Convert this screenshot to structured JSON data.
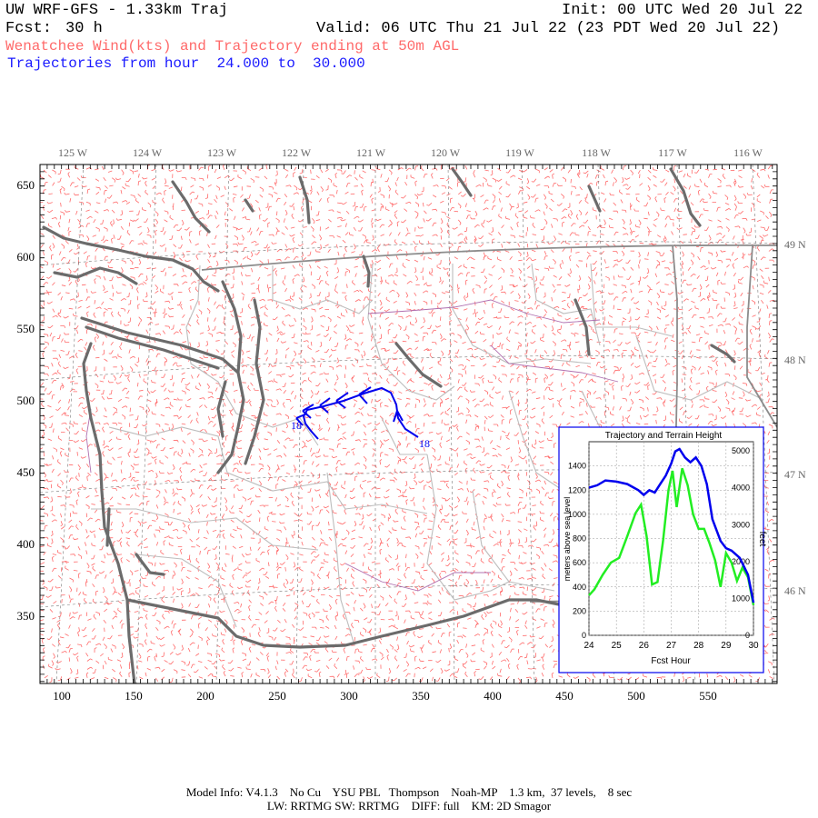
{
  "header": {
    "title": "UW WRF-GFS - 1.33km Traj",
    "init": "Init: 00 UTC Wed 20 Jul 22",
    "fcst_label": "Fcst:",
    "fcst_value": "30 h",
    "valid": "Valid: 06 UTC Thu 21 Jul 22 (23 PDT Wed 20 Jul 22)",
    "subtitle": "Wenatchee Wind(kts) and Trajectory ending at 50m AGL",
    "traj_range": "Trajectories from hour  24.000 to  30.000"
  },
  "map": {
    "x_ticks": [
      "100",
      "150",
      "200",
      "250",
      "300",
      "350",
      "400",
      "450",
      "500",
      "550"
    ],
    "y_ticks": [
      "650",
      "600",
      "550",
      "500",
      "450",
      "400",
      "350"
    ],
    "lon_labels": [
      "125 W",
      "124 W",
      "123 W",
      "122 W",
      "121 W",
      "120 W",
      "119 W",
      "118 W",
      "117 W",
      "116 W"
    ],
    "lat_labels": [
      "49 N",
      "48 N",
      "47 N",
      "46 N"
    ],
    "traj_start_label": "18",
    "traj_end_label": "18",
    "colors": {
      "wind": "#ff6a6a",
      "trajectory": "#0000ee",
      "coast": "#6b6b6b",
      "border": "#9a9a9a",
      "county": "#bbbbbb"
    }
  },
  "inset": {
    "title": "Trajectory and Terrain Height",
    "xlabel": "Fcst Hour",
    "ylabel_left": "meters above sea level",
    "ylabel_right": "feet",
    "x_ticks": [
      "24",
      "25",
      "26",
      "27",
      "28",
      "29",
      "30"
    ],
    "y_ticks_m": [
      "0",
      "200",
      "400",
      "600",
      "800",
      "1000",
      "1200",
      "1400"
    ],
    "y_ticks_ft": [
      "0",
      "1000",
      "2000",
      "3000",
      "4000",
      "5000"
    ]
  },
  "chart_data": {
    "type": "line",
    "title": "Trajectory and Terrain Height",
    "xlabel": "Fcst Hour",
    "ylabel": "meters above sea level",
    "xlim": [
      24,
      30
    ],
    "ylim": [
      0,
      1600
    ],
    "series": [
      {
        "color": "#0000ee",
        "x": [
          24.0,
          24.3,
          24.6,
          25.0,
          25.4,
          25.8,
          26.0,
          26.2,
          26.4,
          26.6,
          26.8,
          27.0,
          27.15,
          27.3,
          27.5,
          27.7,
          27.9,
          28.1,
          28.3,
          28.5,
          28.8,
          29.0,
          29.2,
          29.5,
          29.8,
          30.0
        ],
        "values": [
          1220,
          1240,
          1280,
          1270,
          1250,
          1200,
          1160,
          1200,
          1180,
          1250,
          1320,
          1420,
          1520,
          1540,
          1470,
          1430,
          1470,
          1400,
          1250,
          960,
          780,
          720,
          700,
          640,
          500,
          270
        ]
      },
      {
        "color": "#22ee22",
        "x": [
          24.0,
          24.2,
          24.5,
          24.8,
          25.1,
          25.4,
          25.7,
          25.9,
          26.1,
          26.3,
          26.5,
          26.7,
          26.9,
          27.05,
          27.2,
          27.4,
          27.6,
          27.8,
          28.0,
          28.2,
          28.4,
          28.6,
          28.8,
          29.0,
          29.2,
          29.4,
          29.6,
          29.8,
          30.0
        ],
        "values": [
          330,
          380,
          500,
          600,
          640,
          820,
          1010,
          1080,
          820,
          420,
          440,
          780,
          1200,
          1360,
          1060,
          1380,
          1240,
          1000,
          880,
          880,
          760,
          620,
          400,
          680,
          600,
          450,
          560,
          480,
          250
        ]
      }
    ]
  }
}
